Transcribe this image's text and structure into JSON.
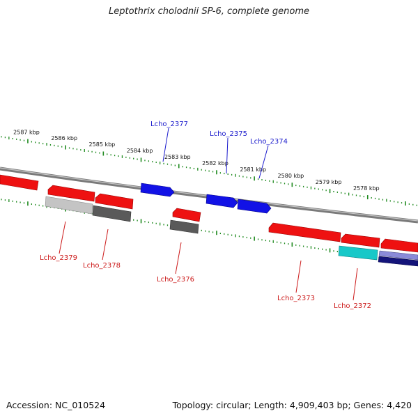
{
  "title": "Leptothrix cholodnii SP-6, complete genome",
  "footer": {
    "accession": "Accession: NC_010524",
    "info": "Topology: circular; Length: 4,909,403 bp; Genes: 4,420"
  },
  "colors": {
    "background": "#ffffff",
    "backbone": "#8c8c8c",
    "ticks": "#1f8a1f",
    "forward_gene": "#1212e6",
    "reverse_gene": "#ee1111",
    "pseudo_light": "#c4c4c4",
    "pseudo_dark": "#5a5a5a",
    "cyan_feature": "#18c8c8",
    "navy_feature": "#14147a",
    "forward_label": "#1a1acc",
    "reverse_label": "#cc1a1a"
  },
  "scale": {
    "kbp_labels": [
      {
        "kbp": 2587,
        "text": "2587 kbp"
      },
      {
        "kbp": 2586,
        "text": "2586 kbp"
      },
      {
        "kbp": 2585,
        "text": "2585 kbp"
      },
      {
        "kbp": 2584,
        "text": "2584 kbp"
      },
      {
        "kbp": 2583,
        "text": "2583 kbp"
      },
      {
        "kbp": 2582,
        "text": "2582 kbp"
      },
      {
        "kbp": 2581,
        "text": "2581 kbp"
      },
      {
        "kbp": 2580,
        "text": "2580 kbp"
      },
      {
        "kbp": 2579,
        "text": "2579 kbp"
      },
      {
        "kbp": 2578,
        "text": "2578 kbp"
      }
    ]
  },
  "genes": [
    {
      "id": "Lcho_2379",
      "strand": "reverse",
      "labeled": true
    },
    {
      "id": "Lcho_2378",
      "strand": "reverse",
      "labeled": true
    },
    {
      "id": "Lcho_2377",
      "strand": "forward",
      "labeled": true
    },
    {
      "id": "Lcho_2376",
      "strand": "reverse",
      "labeled": true
    },
    {
      "id": "Lcho_2375",
      "strand": "forward",
      "labeled": true
    },
    {
      "id": "Lcho_2374",
      "strand": "forward",
      "labeled": true
    },
    {
      "id": "Lcho_2373",
      "strand": "reverse",
      "labeled": true
    },
    {
      "id": "Lcho_2372",
      "strand": "reverse",
      "labeled": true
    }
  ]
}
